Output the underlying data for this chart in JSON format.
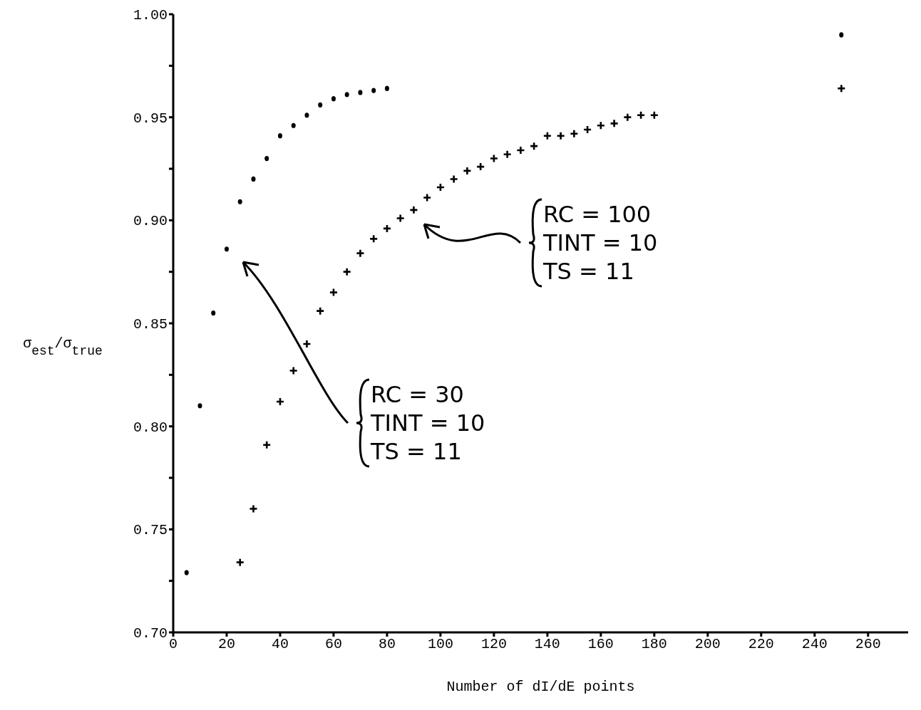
{
  "chart_data": {
    "type": "scatter",
    "xlabel": "Number of dI/dE points",
    "ylabel": "σ$_{est}$/σ$_{true}$",
    "xlim": [
      0,
      275
    ],
    "xticks": [
      0,
      20,
      40,
      60,
      80,
      100,
      120,
      140,
      160,
      180,
      200,
      220,
      240,
      260
    ],
    "ylim": [
      0.7,
      1.0
    ],
    "yticks": [
      {
        "value": 0.7,
        "label": "0.70"
      },
      {
        "value": 0.725,
        "label": null
      },
      {
        "value": 0.75,
        "label": "0.75"
      },
      {
        "value": 0.775,
        "label": null
      },
      {
        "value": 0.8,
        "label": "0.80"
      },
      {
        "value": 0.825,
        "label": null
      },
      {
        "value": 0.85,
        "label": "0.85"
      },
      {
        "value": 0.875,
        "label": null
      },
      {
        "value": 0.9,
        "label": "0.90"
      },
      {
        "value": 0.925,
        "label": null
      },
      {
        "value": 0.95,
        "label": "0.95"
      },
      {
        "value": 0.975,
        "label": null
      },
      {
        "value": 1.0,
        "label": "1.00"
      }
    ],
    "grid": false,
    "legend": false,
    "series": [
      {
        "color": "#000000",
        "marker": "circle",
        "x": [
          5,
          10,
          15,
          20,
          25,
          30,
          35,
          40,
          45,
          50,
          55,
          60,
          65,
          70,
          75,
          80,
          250
        ],
        "values": [
          0.729,
          0.81,
          0.855,
          0.886,
          0.909,
          0.92,
          0.93,
          0.941,
          0.946,
          0.951,
          0.956,
          0.959,
          0.961,
          0.962,
          0.963,
          0.964,
          0.99
        ]
      },
      {
        "color": "#000000",
        "marker": "cross",
        "x": [
          25,
          30,
          35,
          40,
          45,
          50,
          55,
          60,
          65,
          70,
          75,
          80,
          85,
          90,
          95,
          100,
          105,
          110,
          115,
          120,
          125,
          130,
          135,
          140,
          145,
          150,
          155,
          160,
          165,
          170,
          175,
          180,
          250
        ],
        "values": [
          0.734,
          0.76,
          0.791,
          0.812,
          0.827,
          0.84,
          0.856,
          0.865,
          0.875,
          0.884,
          0.891,
          0.896,
          0.901,
          0.905,
          0.911,
          0.916,
          0.92,
          0.924,
          0.926,
          0.93,
          0.932,
          0.934,
          0.936,
          0.941,
          0.941,
          0.942,
          0.944,
          0.946,
          0.947,
          0.95,
          0.951,
          0.951,
          0.964
        ]
      }
    ],
    "annotations": [
      "RC = 30\nTINT = 10\nTS = 11",
      "RC = 100\nTINT = 10\nTS = 11"
    ]
  }
}
